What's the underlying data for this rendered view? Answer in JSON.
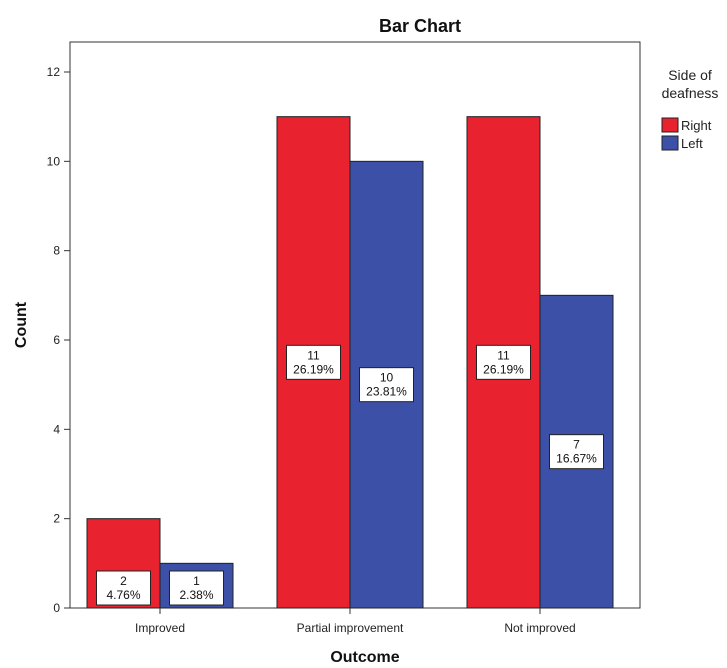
{
  "chart_data": {
    "type": "bar",
    "title": "Bar Chart",
    "xlabel": "Outcome",
    "ylabel": "Count",
    "categories": [
      "Improved",
      "Partial improvement",
      "Not improved"
    ],
    "ylim": [
      0,
      12
    ],
    "yticks": [
      0,
      2,
      4,
      6,
      8,
      10,
      12
    ],
    "grid": false,
    "legend": {
      "title_lines": [
        "Side of",
        "deafness"
      ],
      "placement": "right"
    },
    "series": [
      {
        "name": "Right",
        "color": "#e8232f",
        "values": [
          2,
          11,
          11
        ],
        "labels": [
          [
            "2",
            "4.76%"
          ],
          [
            "11",
            "26.19%"
          ],
          [
            "11",
            "26.19%"
          ]
        ]
      },
      {
        "name": "Left",
        "color": "#3c50a8",
        "values": [
          1,
          10,
          7
        ],
        "labels": [
          [
            "1",
            "2.38%"
          ],
          [
            "10",
            "23.81%"
          ],
          [
            "7",
            "16.67%"
          ]
        ]
      }
    ]
  }
}
